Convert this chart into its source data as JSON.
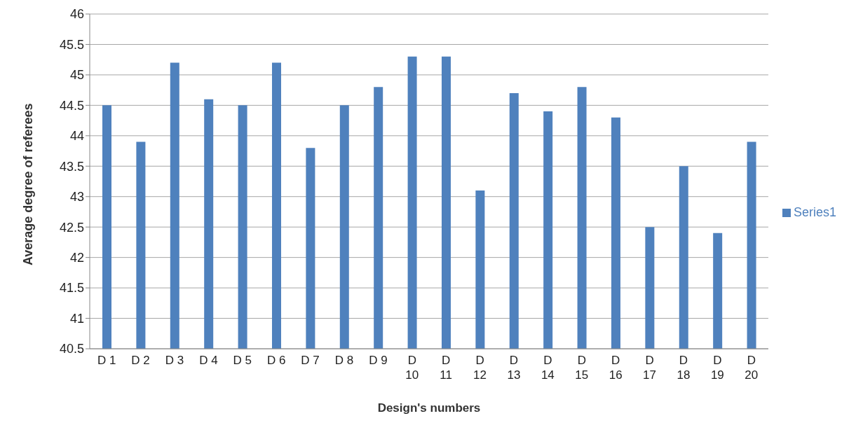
{
  "chart_data": {
    "type": "bar",
    "xlabel": "Design's numbers",
    "ylabel": "Average degree of referees",
    "categories": [
      "D 1",
      "D 2",
      "D 3",
      "D 4",
      "D 5",
      "D 6",
      "D 7",
      "D 8",
      "D 9",
      "D 10",
      "D 11",
      "D 12",
      "D 13",
      "D 14",
      "D 15",
      "D 16",
      "D 17",
      "D 18",
      "D 19",
      "D 20"
    ],
    "series": [
      {
        "name": "Series1",
        "color": "#4f81bd",
        "values": [
          44.5,
          43.9,
          45.2,
          44.6,
          44.5,
          45.2,
          43.8,
          44.5,
          44.8,
          45.3,
          45.3,
          43.1,
          44.7,
          44.4,
          44.8,
          44.3,
          42.5,
          43.5,
          42.4,
          43.9
        ]
      }
    ],
    "ylim": [
      40.5,
      46
    ],
    "yticks": [
      40.5,
      41,
      41.5,
      42,
      42.5,
      43,
      43.5,
      44,
      44.5,
      45,
      45.5,
      46
    ],
    "grid": "y",
    "legend": "right"
  }
}
